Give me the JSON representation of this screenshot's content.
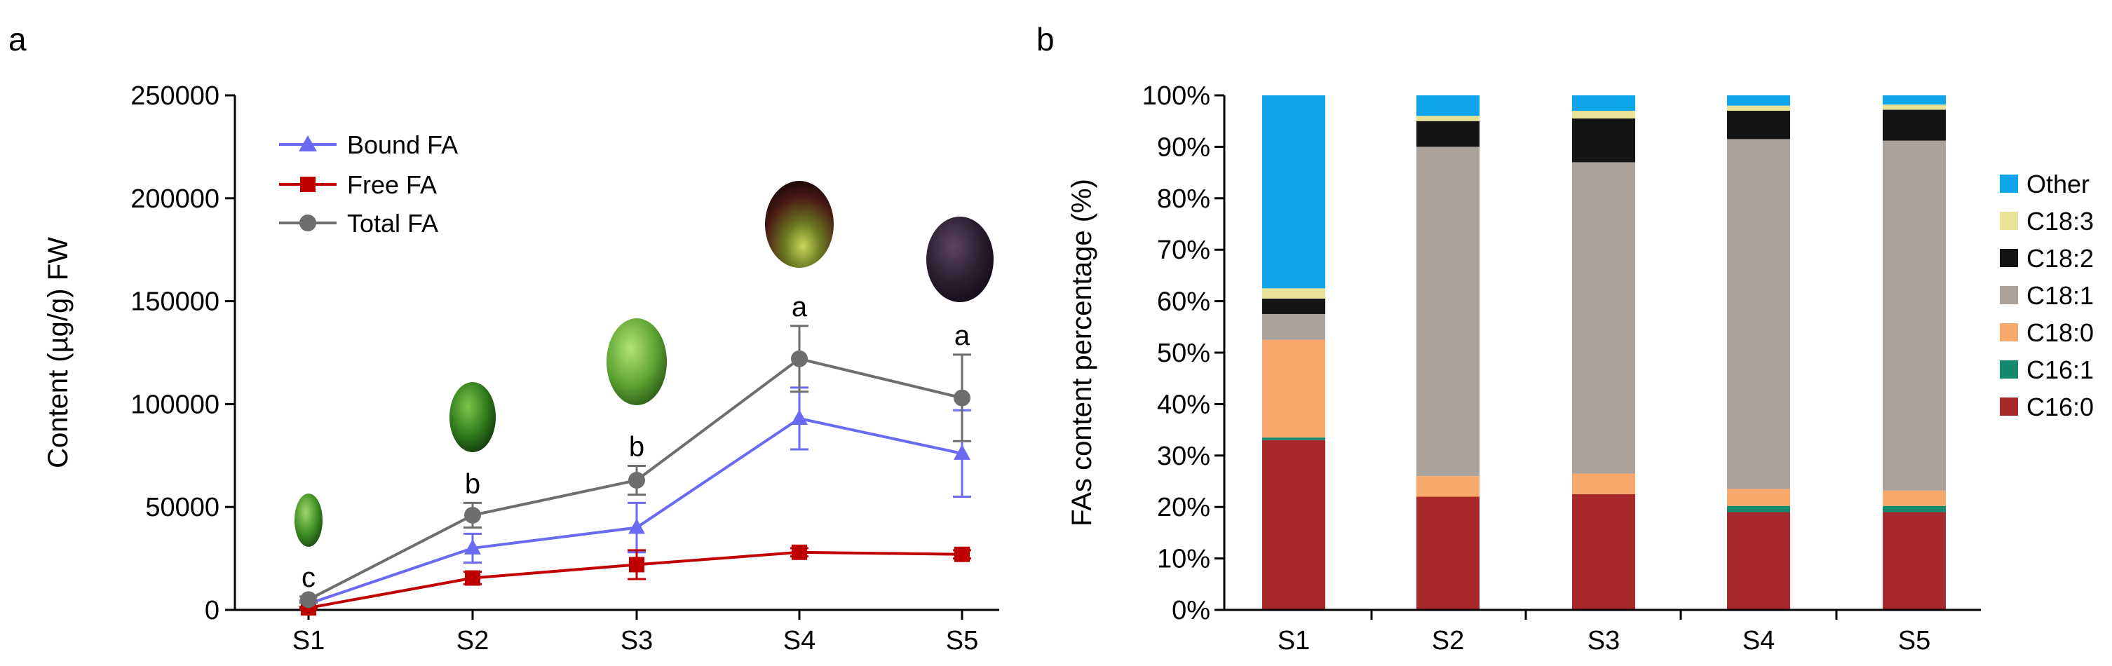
{
  "chart_data": [
    {
      "panel": "a",
      "type": "line",
      "ylabel": "Content (µg/g) FW",
      "xlabel": "",
      "categories": [
        "S1",
        "S2",
        "S3",
        "S4",
        "S5"
      ],
      "ylim": [
        0,
        250000
      ],
      "yticks": [
        0,
        50000,
        100000,
        150000,
        200000,
        250000
      ],
      "legend_position": "top-left",
      "series": [
        {
          "name": "Bound FA",
          "color": "#6a6af2",
          "marker": "triangle",
          "values": [
            3000,
            30000,
            40000,
            93000,
            76000
          ],
          "errors": [
            1500,
            7000,
            12000,
            15000,
            21000
          ]
        },
        {
          "name": "Free FA",
          "color": "#c00000",
          "marker": "square",
          "values": [
            1000,
            15500,
            22000,
            28000,
            27000
          ],
          "errors": [
            500,
            3000,
            7000,
            2000,
            2000
          ]
        },
        {
          "name": "Total FA",
          "color": "#6e6e6e",
          "marker": "circle",
          "values": [
            5000,
            46000,
            63000,
            122000,
            103000
          ],
          "errors": [
            1500,
            6000,
            7000,
            16000,
            21000
          ]
        }
      ],
      "significance": [
        "c",
        "b",
        "b",
        "a",
        "a"
      ],
      "fruit_images": [
        "olive-s1",
        "olive-s2",
        "olive-s3",
        "olive-s4",
        "olive-s5"
      ]
    },
    {
      "panel": "b",
      "type": "bar",
      "stacked": true,
      "ylabel": "FAs content percentage (%)",
      "xlabel": "",
      "categories": [
        "S1",
        "S2",
        "S3",
        "S4",
        "S5"
      ],
      "ylim": [
        0,
        100
      ],
      "yticks": [
        "0%",
        "10%",
        "20%",
        "30%",
        "40%",
        "50%",
        "60%",
        "70%",
        "80%",
        "90%",
        "100%"
      ],
      "legend_position": "right",
      "series": [
        {
          "name": "C16:0",
          "color": "#a8292b",
          "values": [
            33,
            22,
            22.5,
            19,
            19
          ]
        },
        {
          "name": "C16:1",
          "color": "#138a6e",
          "values": [
            0.5,
            0,
            0,
            1.2,
            1.2
          ]
        },
        {
          "name": "C18:0",
          "color": "#f9a96b",
          "values": [
            19,
            4,
            4,
            3.3,
            3
          ]
        },
        {
          "name": "C18:1",
          "color": "#aba29c",
          "values": [
            5,
            64,
            60.5,
            68,
            68
          ]
        },
        {
          "name": "C18:2",
          "color": "#141414",
          "values": [
            3,
            5,
            8.5,
            5.5,
            6
          ]
        },
        {
          "name": "C18:3",
          "color": "#e6e296",
          "values": [
            2,
            1,
            1.5,
            1,
            1
          ]
        },
        {
          "name": "Other",
          "color": "#0ea5ea",
          "values": [
            37.5,
            4,
            3,
            2,
            1.8
          ]
        }
      ],
      "legend_order": [
        "Other",
        "C18:3",
        "C18:2",
        "C18:1",
        "C18:0",
        "C16:1",
        "C16:0"
      ]
    }
  ]
}
